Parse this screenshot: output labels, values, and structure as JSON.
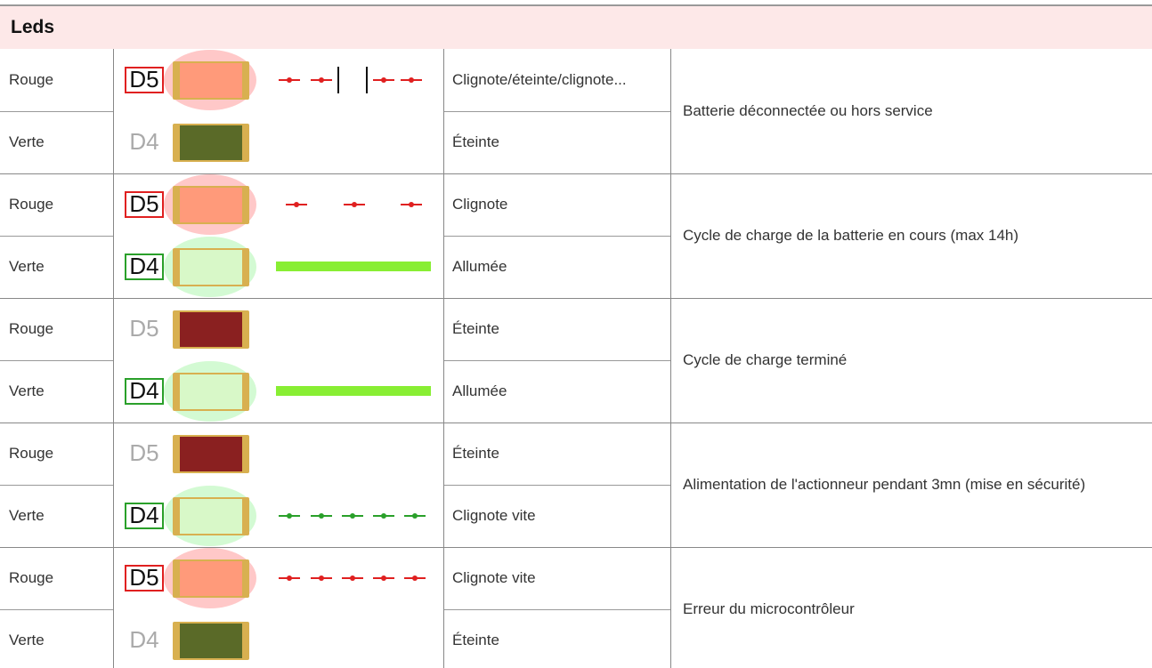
{
  "header": {
    "title": "Leds"
  },
  "groups": [
    {
      "rows": [
        {
          "color": "Rouge",
          "led": "D5",
          "state": "Clignote/éteinte/clignote..."
        },
        {
          "color": "Verte",
          "led": "D4",
          "state": "Éteinte"
        }
      ],
      "description": "Batterie déconnectée ou hors service"
    },
    {
      "rows": [
        {
          "color": "Rouge",
          "led": "D5",
          "state": "Clignote"
        },
        {
          "color": "Verte",
          "led": "D4",
          "state": "Allumée"
        }
      ],
      "description": "Cycle de charge de la batterie en cours (max 14h)"
    },
    {
      "rows": [
        {
          "color": "Rouge",
          "led": "D5",
          "state": "Éteinte"
        },
        {
          "color": "Verte",
          "led": "D4",
          "state": "Allumée"
        }
      ],
      "description": "Cycle de charge terminé"
    },
    {
      "rows": [
        {
          "color": "Rouge",
          "led": "D5",
          "state": "Éteinte"
        },
        {
          "color": "Verte",
          "led": "D4",
          "state": "Clignote vite"
        }
      ],
      "description": "Alimentation de l'actionneur pendant 3mn (mise en sécurité)"
    },
    {
      "rows": [
        {
          "color": "Rouge",
          "led": "D5",
          "state": "Clignote vite"
        },
        {
          "color": "Verte",
          "led": "D4",
          "state": "Éteinte"
        }
      ],
      "description": "Erreur du microcontrôleur"
    }
  ]
}
